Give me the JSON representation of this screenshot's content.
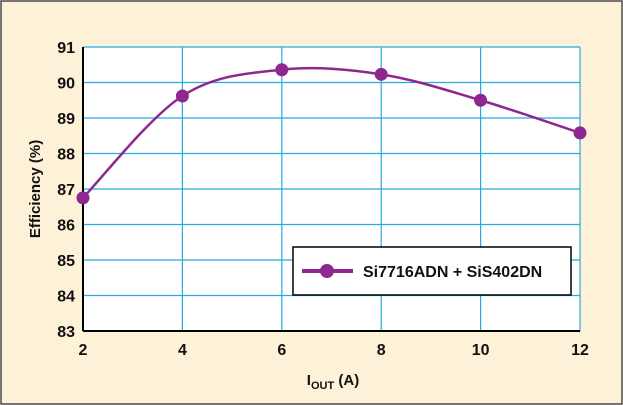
{
  "colors": {
    "background": "#fdf1d8",
    "frame": "#4a4a4a",
    "plot_background": "#ffffff",
    "grid": "#29a9e1",
    "series": "#8e278f",
    "text": "#111111"
  },
  "chart_data": {
    "type": "line",
    "title": "",
    "xlabel_main": "I",
    "xlabel_sub": "OUT",
    "xlabel_unit": " (A)",
    "ylabel": "Efficiency (%)",
    "xlim": [
      2,
      12
    ],
    "ylim": [
      83,
      91
    ],
    "x_ticks": [
      2,
      4,
      6,
      8,
      10,
      12
    ],
    "x_tick_labels": [
      "2",
      "4",
      "6",
      "8",
      "10",
      "12"
    ],
    "y_ticks": [
      83,
      84,
      85,
      86,
      87,
      88,
      89,
      90,
      91
    ],
    "y_tick_labels": [
      "83",
      "84",
      "85",
      "86",
      "87",
      "88",
      "89",
      "90",
      "91"
    ],
    "grid": true,
    "legend_position": "bottom-right",
    "series": [
      {
        "name": "Si7716ADN + SiS402DN",
        "x": [
          2,
          4,
          6,
          8,
          10,
          12
        ],
        "y": [
          86.75,
          89.62,
          90.36,
          90.23,
          89.5,
          88.58
        ]
      }
    ]
  }
}
